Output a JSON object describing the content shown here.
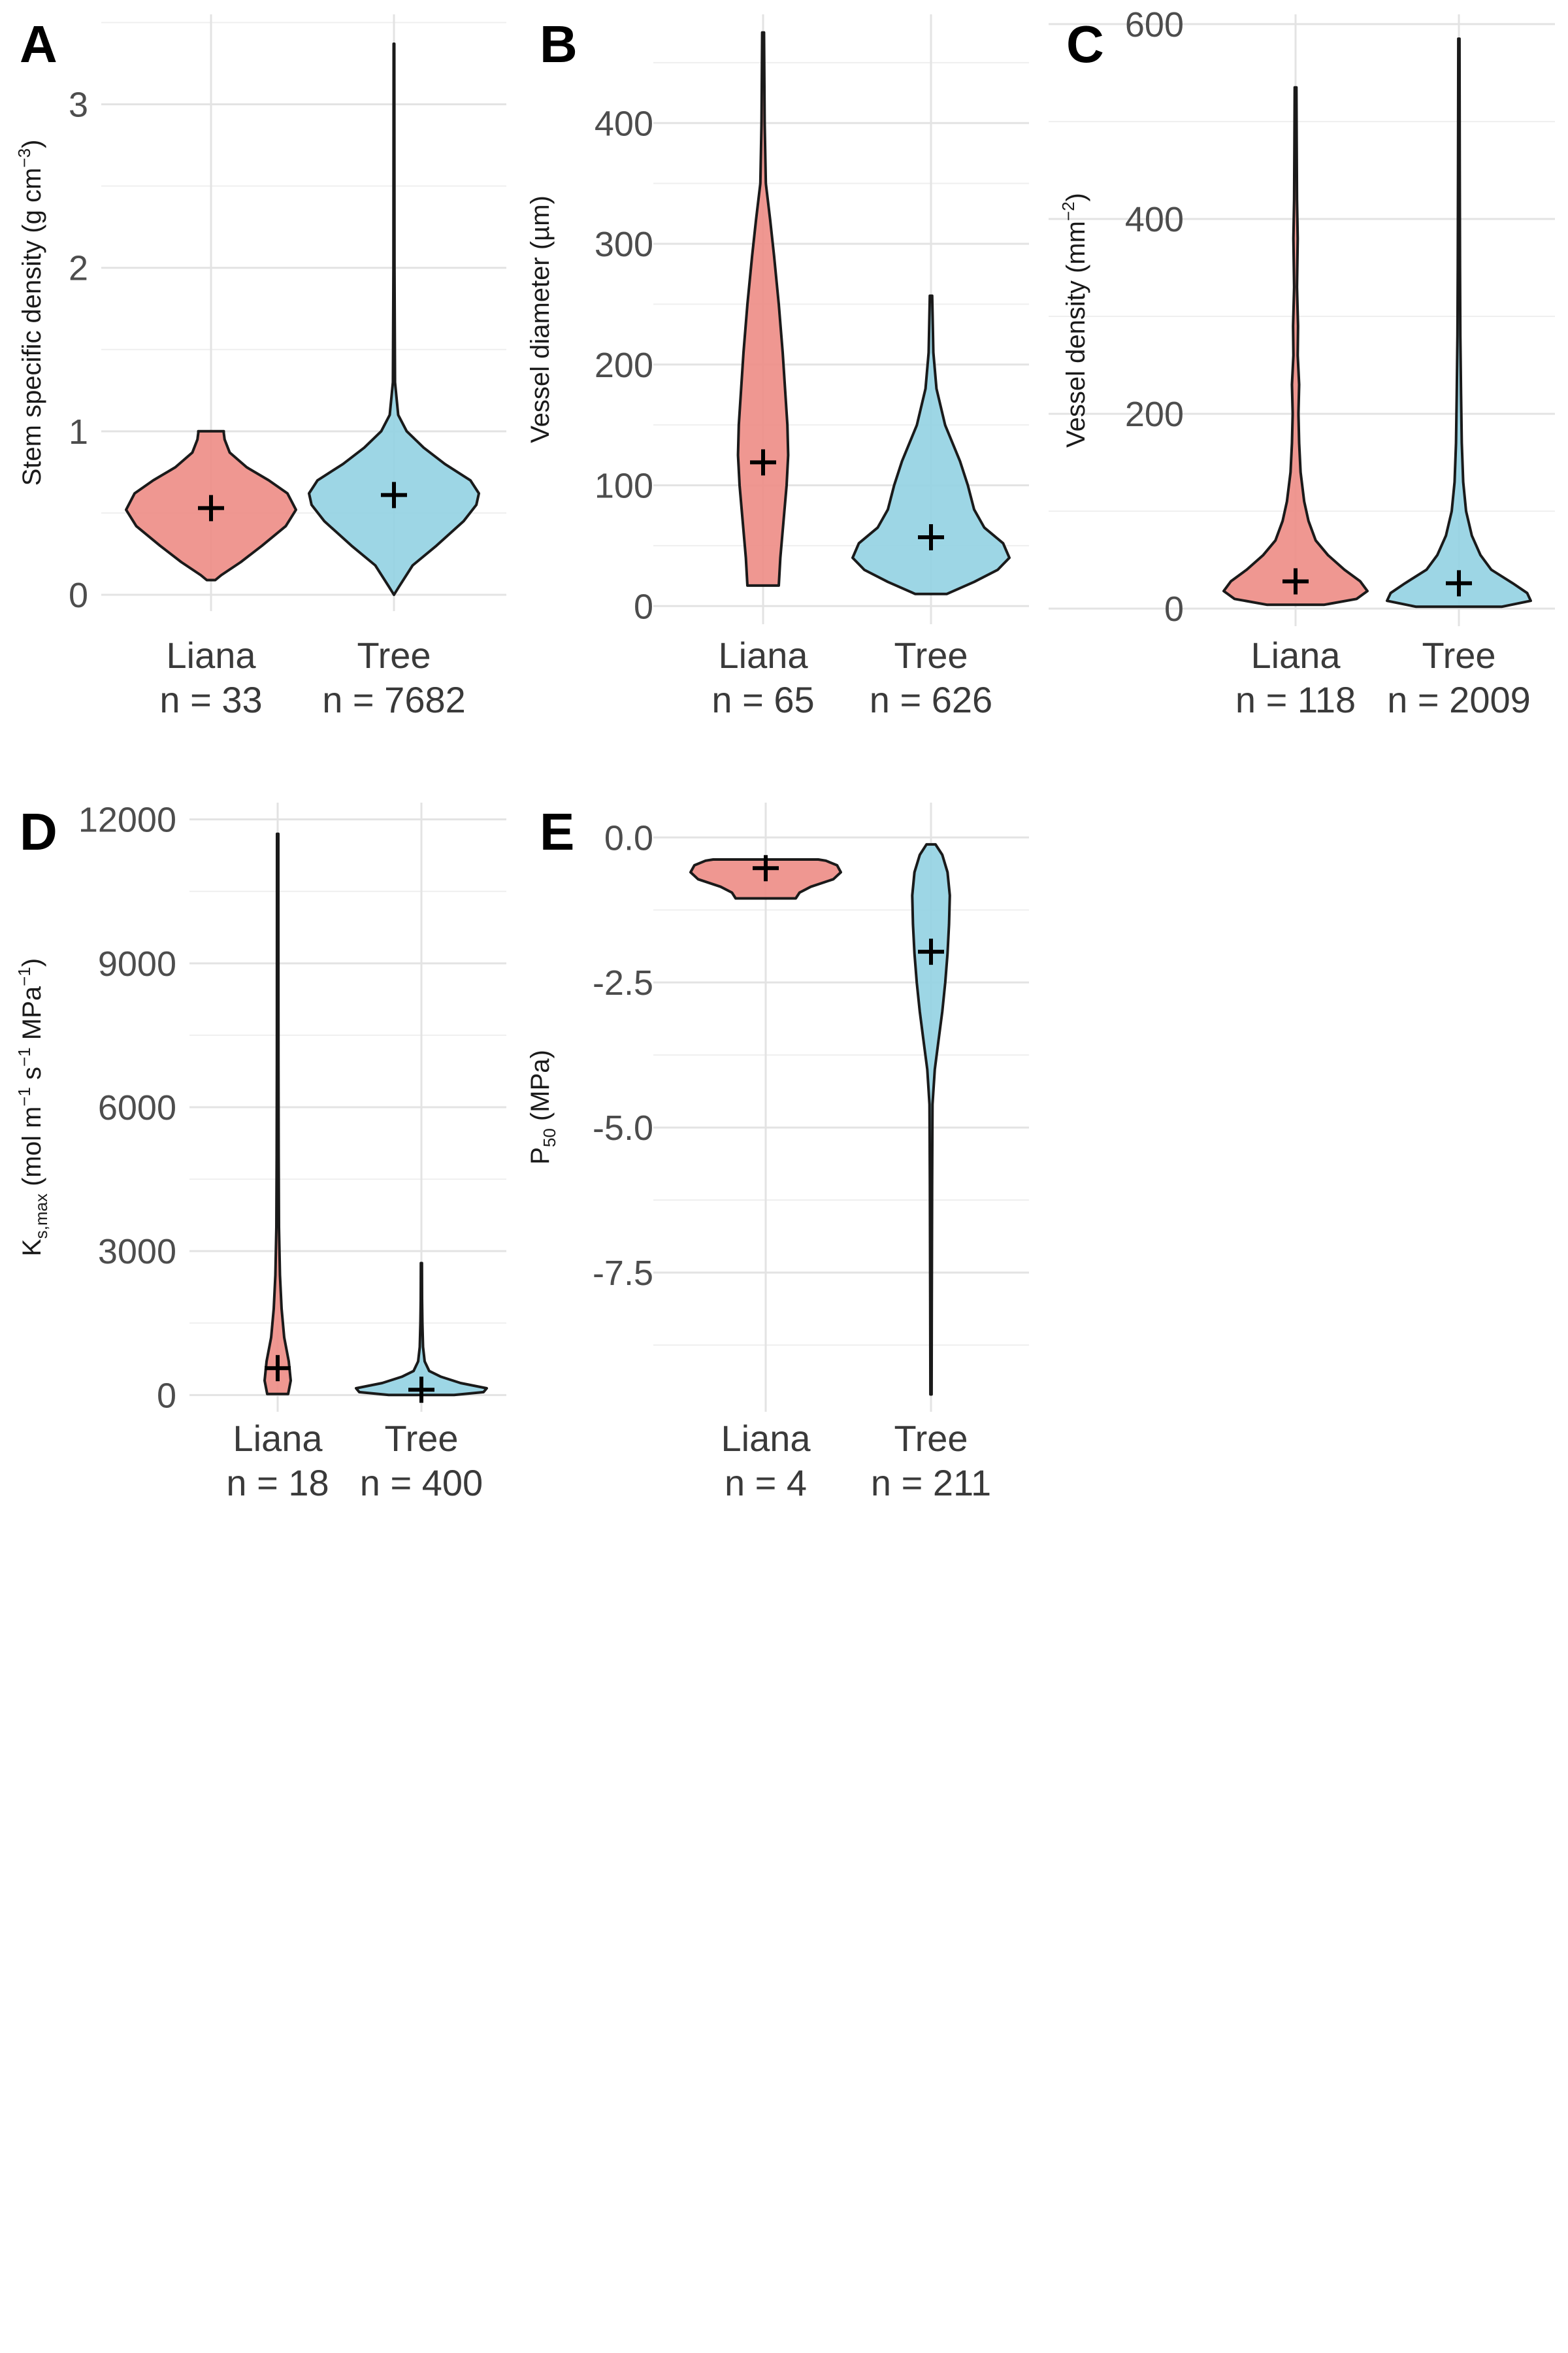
{
  "colors": {
    "liana": "#ED8C85",
    "tree": "#92D1E2",
    "outline": "#1a1a1a",
    "mean_marker": "#000000",
    "grid": "#e3e3e3"
  },
  "chart_data": [
    {
      "panel": "A",
      "type": "violin",
      "categories": [
        "Liana",
        "Tree"
      ],
      "n_labels": [
        "n = 33",
        "n = 7682"
      ],
      "ylabel": "Stem specific density (g cm",
      "ylabel_sup": "−3",
      "ylabel_end": ")",
      "ylim": [
        -0.1,
        3.55
      ],
      "yticks": [
        0,
        1,
        2,
        3
      ],
      "tick_labels": [
        "0",
        "1",
        "2",
        "3"
      ],
      "grid": true,
      "series": [
        {
          "name": "Liana",
          "min": 0.09,
          "max": 1.0,
          "mean": 0.53,
          "density": [
            [
              0.09,
              0.05
            ],
            [
              0.12,
              0.12
            ],
            [
              0.2,
              0.35
            ],
            [
              0.3,
              0.6
            ],
            [
              0.42,
              0.88
            ],
            [
              0.52,
              1.0
            ],
            [
              0.62,
              0.9
            ],
            [
              0.7,
              0.68
            ],
            [
              0.78,
              0.42
            ],
            [
              0.87,
              0.22
            ],
            [
              0.95,
              0.16
            ],
            [
              0.99,
              0.15
            ],
            [
              1.0,
              0.15
            ]
          ]
        },
        {
          "name": "Tree",
          "min": 0.0,
          "max": 3.37,
          "mean": 0.61,
          "density": [
            [
              0.0,
              0.0
            ],
            [
              0.05,
              0.06
            ],
            [
              0.18,
              0.22
            ],
            [
              0.3,
              0.5
            ],
            [
              0.45,
              0.82
            ],
            [
              0.55,
              0.97
            ],
            [
              0.62,
              1.0
            ],
            [
              0.7,
              0.9
            ],
            [
              0.8,
              0.6
            ],
            [
              0.9,
              0.35
            ],
            [
              1.0,
              0.15
            ],
            [
              1.1,
              0.05
            ],
            [
              1.3,
              0.012
            ],
            [
              2.0,
              0.006
            ],
            [
              3.37,
              0.004
            ]
          ]
        }
      ]
    },
    {
      "panel": "B",
      "type": "violin",
      "categories": [
        "Liana",
        "Tree"
      ],
      "n_labels": [
        "n = 65",
        "n = 626"
      ],
      "ylabel": "Vessel diameter (µm)",
      "ylim": [
        -15,
        490
      ],
      "yticks": [
        0,
        100,
        200,
        300,
        400
      ],
      "tick_labels": [
        "0",
        "100",
        "200",
        "300",
        "400"
      ],
      "grid": true,
      "series": [
        {
          "name": "Liana",
          "min": 17,
          "max": 475,
          "mean": 119,
          "density": [
            [
              17,
              0.2
            ],
            [
              40,
              0.22
            ],
            [
              70,
              0.26
            ],
            [
              100,
              0.3
            ],
            [
              125,
              0.32
            ],
            [
              150,
              0.31
            ],
            [
              180,
              0.28
            ],
            [
              210,
              0.25
            ],
            [
              250,
              0.2
            ],
            [
              290,
              0.14
            ],
            [
              320,
              0.09
            ],
            [
              350,
              0.035
            ],
            [
              400,
              0.02
            ],
            [
              475,
              0.012
            ]
          ]
        },
        {
          "name": "Tree",
          "min": 10,
          "max": 257,
          "mean": 57,
          "density": [
            [
              10,
              0.2
            ],
            [
              20,
              0.55
            ],
            [
              30,
              0.85
            ],
            [
              40,
              1.0
            ],
            [
              52,
              0.92
            ],
            [
              65,
              0.68
            ],
            [
              80,
              0.55
            ],
            [
              100,
              0.47
            ],
            [
              120,
              0.37
            ],
            [
              150,
              0.18
            ],
            [
              180,
              0.07
            ],
            [
              210,
              0.03
            ],
            [
              257,
              0.015
            ]
          ]
        }
      ]
    },
    {
      "panel": "C",
      "type": "violin",
      "categories": [
        "Liana",
        "Tree"
      ],
      "n_labels": [
        "n = 118",
        "n = 2009"
      ],
      "ylabel": "Vessel density (mm",
      "ylabel_sup": "−2",
      "ylabel_end": ")",
      "ylim": [
        -18,
        610
      ],
      "yticks": [
        0,
        200,
        400,
        600
      ],
      "tick_labels": [
        "0",
        "200",
        "400",
        "600"
      ],
      "grid": true,
      "series": [
        {
          "name": "Liana",
          "min": 4,
          "max": 535,
          "mean": 28,
          "density": [
            [
              4,
              0.4
            ],
            [
              10,
              0.85
            ],
            [
              18,
              1.0
            ],
            [
              28,
              0.9
            ],
            [
              40,
              0.68
            ],
            [
              55,
              0.45
            ],
            [
              70,
              0.28
            ],
            [
              90,
              0.18
            ],
            [
              110,
              0.12
            ],
            [
              140,
              0.07
            ],
            [
              170,
              0.05
            ],
            [
              200,
              0.04
            ],
            [
              230,
              0.05
            ],
            [
              260,
              0.03
            ],
            [
              290,
              0.035
            ],
            [
              330,
              0.02
            ],
            [
              380,
              0.03
            ],
            [
              420,
              0.02
            ],
            [
              480,
              0.015
            ],
            [
              535,
              0.012
            ]
          ]
        },
        {
          "name": "Tree",
          "min": 2,
          "max": 585,
          "mean": 26,
          "density": [
            [
              2,
              0.6
            ],
            [
              8,
              1.0
            ],
            [
              16,
              0.95
            ],
            [
              26,
              0.75
            ],
            [
              40,
              0.45
            ],
            [
              55,
              0.3
            ],
            [
              75,
              0.18
            ],
            [
              100,
              0.1
            ],
            [
              130,
              0.06
            ],
            [
              170,
              0.04
            ],
            [
              220,
              0.03
            ],
            [
              280,
              0.02
            ],
            [
              350,
              0.015
            ],
            [
              450,
              0.012
            ],
            [
              585,
              0.008
            ]
          ]
        }
      ]
    },
    {
      "panel": "D",
      "type": "violin",
      "categories": [
        "Liana",
        "Tree"
      ],
      "n_labels": [
        "n = 18",
        "n = 400"
      ],
      "ylabel": "K",
      "ylabel_sub": "s,max",
      "ylabel_rest": " (mol m",
      "ylabel_sup1": "−1",
      "ylabel_mid": " s",
      "ylabel_sup2": "−1",
      "ylabel_mid2": " MPa",
      "ylabel_sup3": "−1",
      "ylabel_end": ")",
      "ylim": [
        -350,
        12350
      ],
      "yticks": [
        0,
        3000,
        6000,
        9000,
        12000
      ],
      "tick_labels": [
        "0",
        "3000",
        "6000",
        "9000",
        "12000"
      ],
      "grid": true,
      "series": [
        {
          "name": "Liana",
          "min": 20,
          "max": 11700,
          "mean": 560,
          "density": [
            [
              20,
              0.16
            ],
            [
              300,
              0.2
            ],
            [
              700,
              0.17
            ],
            [
              1200,
              0.1
            ],
            [
              1800,
              0.06
            ],
            [
              2500,
              0.035
            ],
            [
              3500,
              0.02
            ],
            [
              5000,
              0.015
            ],
            [
              7000,
              0.012
            ],
            [
              11700,
              0.01
            ]
          ]
        },
        {
          "name": "Tree",
          "min": 0,
          "max": 2750,
          "mean": 110,
          "density": [
            [
              0,
              0.5
            ],
            [
              60,
              0.95
            ],
            [
              140,
              1.0
            ],
            [
              250,
              0.6
            ],
            [
              380,
              0.3
            ],
            [
              500,
              0.12
            ],
            [
              700,
              0.05
            ],
            [
              1000,
              0.025
            ],
            [
              1500,
              0.015
            ],
            [
              2000,
              0.01
            ],
            [
              2750,
              0.008
            ]
          ]
        }
      ]
    },
    {
      "panel": "E",
      "type": "violin",
      "categories": [
        "Liana",
        "Tree"
      ],
      "n_labels": [
        "n = 4",
        "n = 211"
      ],
      "ylabel": "P",
      "ylabel_sub": "50",
      "ylabel_rest": " (MPa)",
      "ylim": [
        -9.9,
        0.6
      ],
      "yticks": [
        0,
        -2.5,
        -5,
        -7.5
      ],
      "tick_labels": [
        "0.0",
        "-2.5",
        "-5.0",
        "-7.5"
      ],
      "grid": true,
      "series": [
        {
          "name": "Liana",
          "min": -1.05,
          "max": -0.38,
          "mean": -0.53,
          "density": [
            [
              -1.05,
              0.4
            ],
            [
              -0.95,
              0.45
            ],
            [
              -0.85,
              0.6
            ],
            [
              -0.72,
              0.9
            ],
            [
              -0.6,
              1.0
            ],
            [
              -0.48,
              0.95
            ],
            [
              -0.4,
              0.8
            ],
            [
              -0.38,
              0.7
            ]
          ]
        },
        {
          "name": "Tree",
          "min": -9.6,
          "max": -0.12,
          "mean": -1.97,
          "density": [
            [
              -9.6,
              0.008
            ],
            [
              -8.0,
              0.01
            ],
            [
              -6.0,
              0.015
            ],
            [
              -4.6,
              0.02
            ],
            [
              -4.0,
              0.05
            ],
            [
              -3.5,
              0.1
            ],
            [
              -3.0,
              0.15
            ],
            [
              -2.5,
              0.19
            ],
            [
              -2.0,
              0.22
            ],
            [
              -1.5,
              0.24
            ],
            [
              -1.0,
              0.25
            ],
            [
              -0.6,
              0.22
            ],
            [
              -0.3,
              0.15
            ],
            [
              -0.12,
              0.06
            ]
          ]
        }
      ]
    }
  ]
}
